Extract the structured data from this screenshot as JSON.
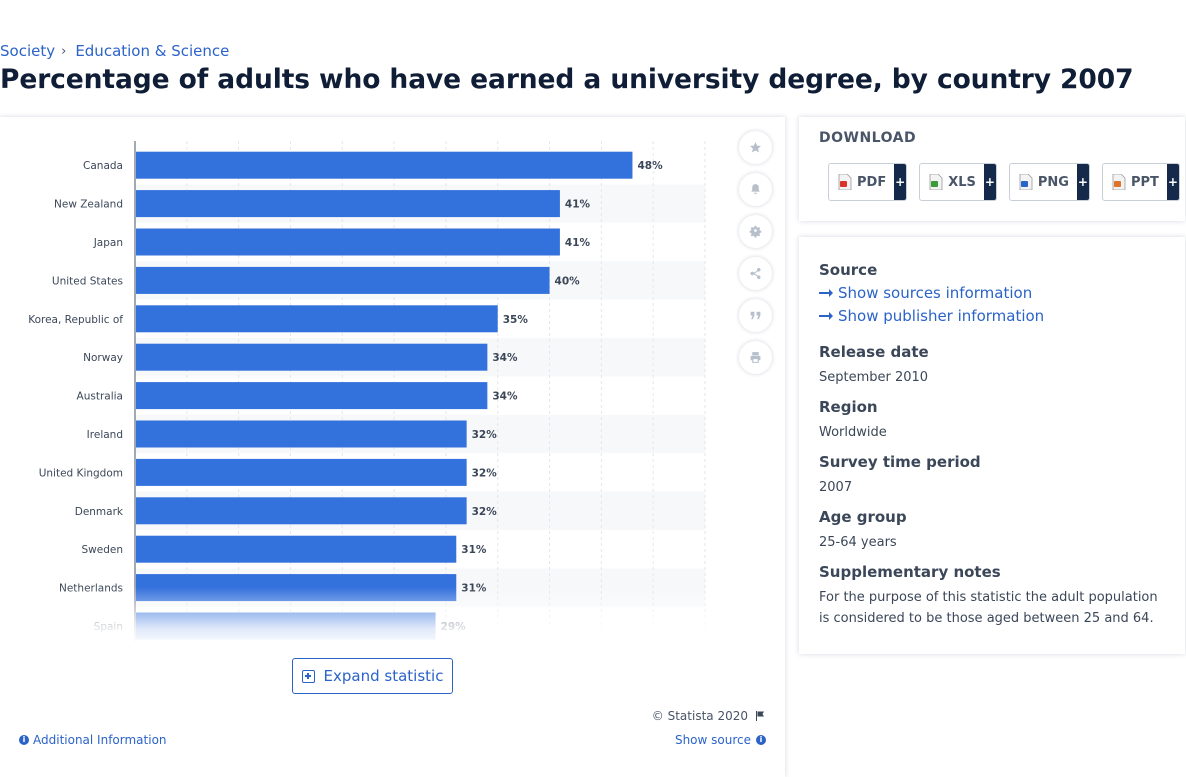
{
  "breadcrumb": [
    {
      "label": "Society"
    },
    {
      "label": "Education & Science"
    }
  ],
  "page_title": "Percentage of adults who have earned a university degree, by country 2007",
  "chart_data": {
    "type": "bar",
    "orientation": "horizontal",
    "categories": [
      "Canada",
      "New Zealand",
      "Japan",
      "United States",
      "Korea, Republic of",
      "Norway",
      "Australia",
      "Ireland",
      "United Kingdom",
      "Denmark",
      "Sweden",
      "Netherlands",
      "Spain"
    ],
    "values": [
      48,
      41,
      41,
      40,
      35,
      34,
      34,
      32,
      32,
      32,
      31,
      31,
      29
    ],
    "data_labels": [
      "48%",
      "41%",
      "41%",
      "40%",
      "35%",
      "34%",
      "34%",
      "32%",
      "32%",
      "32%",
      "31%",
      "31%",
      "29%"
    ],
    "xlim": [
      0,
      55
    ],
    "grid": true,
    "bar_color": "#3371dc",
    "title": "",
    "xlabel": "",
    "ylabel": ""
  },
  "toolbar": [
    {
      "icon": "star-icon"
    },
    {
      "icon": "bell-icon"
    },
    {
      "icon": "gear-icon"
    },
    {
      "icon": "share-icon"
    },
    {
      "icon": "quote-icon"
    },
    {
      "icon": "print-icon"
    }
  ],
  "expand_label": "Expand statistic",
  "copyright": "© Statista 2020",
  "additional_info": "Additional Information",
  "show_source": "Show source",
  "download": {
    "title": "DOWNLOAD",
    "buttons": [
      {
        "label": "PDF",
        "plus": "+",
        "color": "#d9342b"
      },
      {
        "label": "XLS",
        "plus": "+",
        "color": "#3a9a3a"
      },
      {
        "label": "PNG",
        "plus": "+",
        "color": "#2b63c9"
      },
      {
        "label": "PPT",
        "plus": "+",
        "color": "#e0742a"
      }
    ]
  },
  "info": {
    "source_label": "Source",
    "show_sources": "Show sources information",
    "show_publisher": "Show publisher information",
    "release_label": "Release date",
    "release_value": "September 2010",
    "region_label": "Region",
    "region_value": "Worldwide",
    "survey_label": "Survey time period",
    "survey_value": "2007",
    "age_label": "Age group",
    "age_value": "25-64 years",
    "notes_label": "Supplementary notes",
    "notes_value": "For the purpose of this statistic the adult population is considered to be those aged between 25 and 64."
  }
}
